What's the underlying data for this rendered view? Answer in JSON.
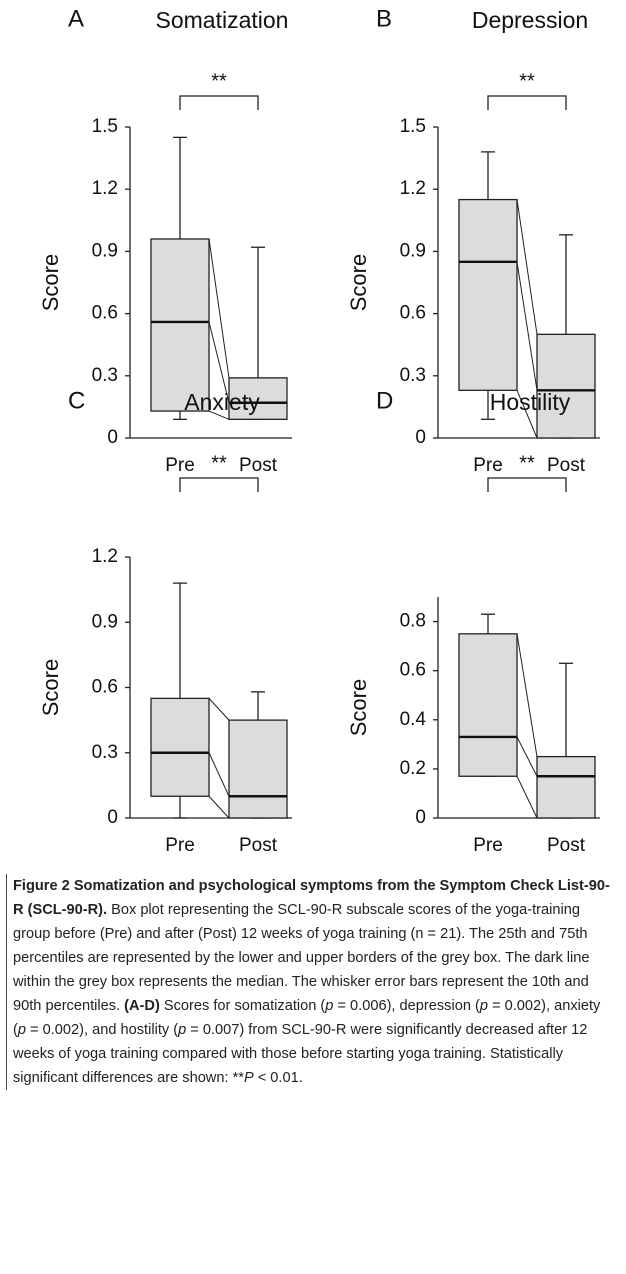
{
  "chart_data": [
    {
      "type": "box",
      "panel_label": "A",
      "title": "Somatization",
      "ylabel": "Score",
      "annotation": "**",
      "categories": [
        "Pre",
        "Post"
      ],
      "boxes": [
        {
          "whislo": 0.09,
          "q1": 0.13,
          "med": 0.56,
          "q3": 0.96,
          "whishi": 1.45
        },
        {
          "whislo": 0.09,
          "q1": 0.09,
          "med": 0.17,
          "q3": 0.29,
          "whishi": 0.92
        }
      ],
      "ylim": [
        0,
        1.5
      ],
      "yticks": [
        0,
        0.3,
        0.6,
        0.9,
        1.2,
        1.5
      ],
      "color": "#dcdcdc"
    },
    {
      "type": "box",
      "panel_label": "B",
      "title": "Depression",
      "ylabel": "Score",
      "annotation": "**",
      "categories": [
        "Pre",
        "Post"
      ],
      "boxes": [
        {
          "whislo": 0.09,
          "q1": 0.23,
          "med": 0.85,
          "q3": 1.15,
          "whishi": 1.38
        },
        {
          "whislo": 0,
          "q1": 0,
          "med": 0.23,
          "q3": 0.5,
          "whishi": 0.98
        }
      ],
      "ylim": [
        0,
        1.5
      ],
      "yticks": [
        0,
        0.3,
        0.6,
        0.9,
        1.2,
        1.5
      ],
      "color": "#dcdcdc"
    },
    {
      "type": "box",
      "panel_label": "C",
      "title": "Anxiety",
      "ylabel": "Score",
      "annotation": "**",
      "categories": [
        "Pre",
        "Post"
      ],
      "boxes": [
        {
          "whislo": 0,
          "q1": 0.1,
          "med": 0.3,
          "q3": 0.55,
          "whishi": 1.08
        },
        {
          "whislo": 0,
          "q1": 0,
          "med": 0.1,
          "q3": 0.45,
          "whishi": 0.58
        }
      ],
      "ylim": [
        0,
        1.2
      ],
      "yticks": [
        0,
        0.3,
        0.6,
        0.9,
        1.2
      ],
      "color": "#dcdcdc"
    },
    {
      "type": "box",
      "panel_label": "D",
      "title": "Hostility",
      "ylabel": "Score",
      "annotation": "**",
      "categories": [
        "Pre",
        "Post"
      ],
      "boxes": [
        {
          "whislo": 0.17,
          "q1": 0.17,
          "med": 0.33,
          "q3": 0.75,
          "whishi": 0.83
        },
        {
          "whislo": 0,
          "q1": 0,
          "med": 0.17,
          "q3": 0.25,
          "whishi": 0.63
        }
      ],
      "ylim": [
        0,
        0.9
      ],
      "yticks": [
        0,
        0.2,
        0.4,
        0.6,
        0.8
      ],
      "color": "#dcdcdc"
    }
  ],
  "caption": {
    "segments": [
      "Figure 2 Somatization and psychological symptoms from the Symptom Check List-90-R (SCL-90-R).",
      " Box plot representing the SCL-90-R subscale scores of the yoga-training group before (Pre) and after (Post) 12 weeks of yoga training (n = 21). The 25th and 75th percentiles are represented by the lower and upper borders of the grey box. The dark line within the grey box represents the median. The whisker error bars represent the 10th and 90th percentiles. ",
      "(A-D)",
      " Scores for somatization (",
      "p",
      " = 0.006), depression (",
      "p",
      " = 0.002), anxiety (",
      "p",
      " = 0.002), and hostility (",
      "p",
      " = 0.007) from SCL-90-R were significantly decreased after 12 weeks of yoga training compared with those before starting yoga training. Statistically significant differences are shown: **",
      "P",
      " < 0.01."
    ]
  }
}
